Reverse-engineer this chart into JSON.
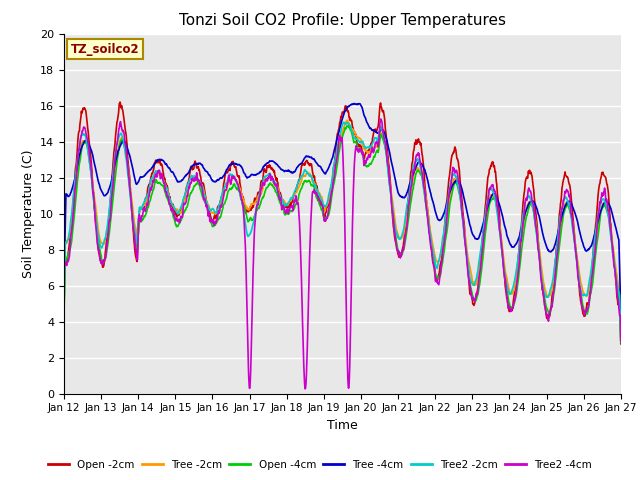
{
  "title": "Tonzi Soil CO2 Profile: Upper Temperatures",
  "xlabel": "Time",
  "ylabel": "Soil Temperature (C)",
  "ylim": [
    0,
    20
  ],
  "label_text": "TZ_soilco2",
  "label_fg": "#8B0000",
  "label_bg": "#ffffcc",
  "label_edge": "#aa8800",
  "plot_bg": "#e8e8e8",
  "grid_color": "#ffffff",
  "series_colors": {
    "Open -2cm": "#cc0000",
    "Tree -2cm": "#ff9900",
    "Open -4cm": "#00cc00",
    "Tree -4cm": "#0000cc",
    "Tree2 -2cm": "#00cccc",
    "Tree2 -4cm": "#cc00cc"
  },
  "xtick_labels": [
    "Jan 12",
    "Jan 13",
    "Jan 14",
    "Jan 15",
    "Jan 16",
    "Jan 17",
    "Jan 18",
    "Jan 19",
    "Jan 20",
    "Jan 21",
    "Jan 22",
    "Jan 23",
    "Jan 24",
    "Jan 25",
    "Jan 26",
    "Jan 27"
  ],
  "ytick_values": [
    0,
    2,
    4,
    6,
    8,
    10,
    12,
    14,
    16,
    18,
    20
  ]
}
